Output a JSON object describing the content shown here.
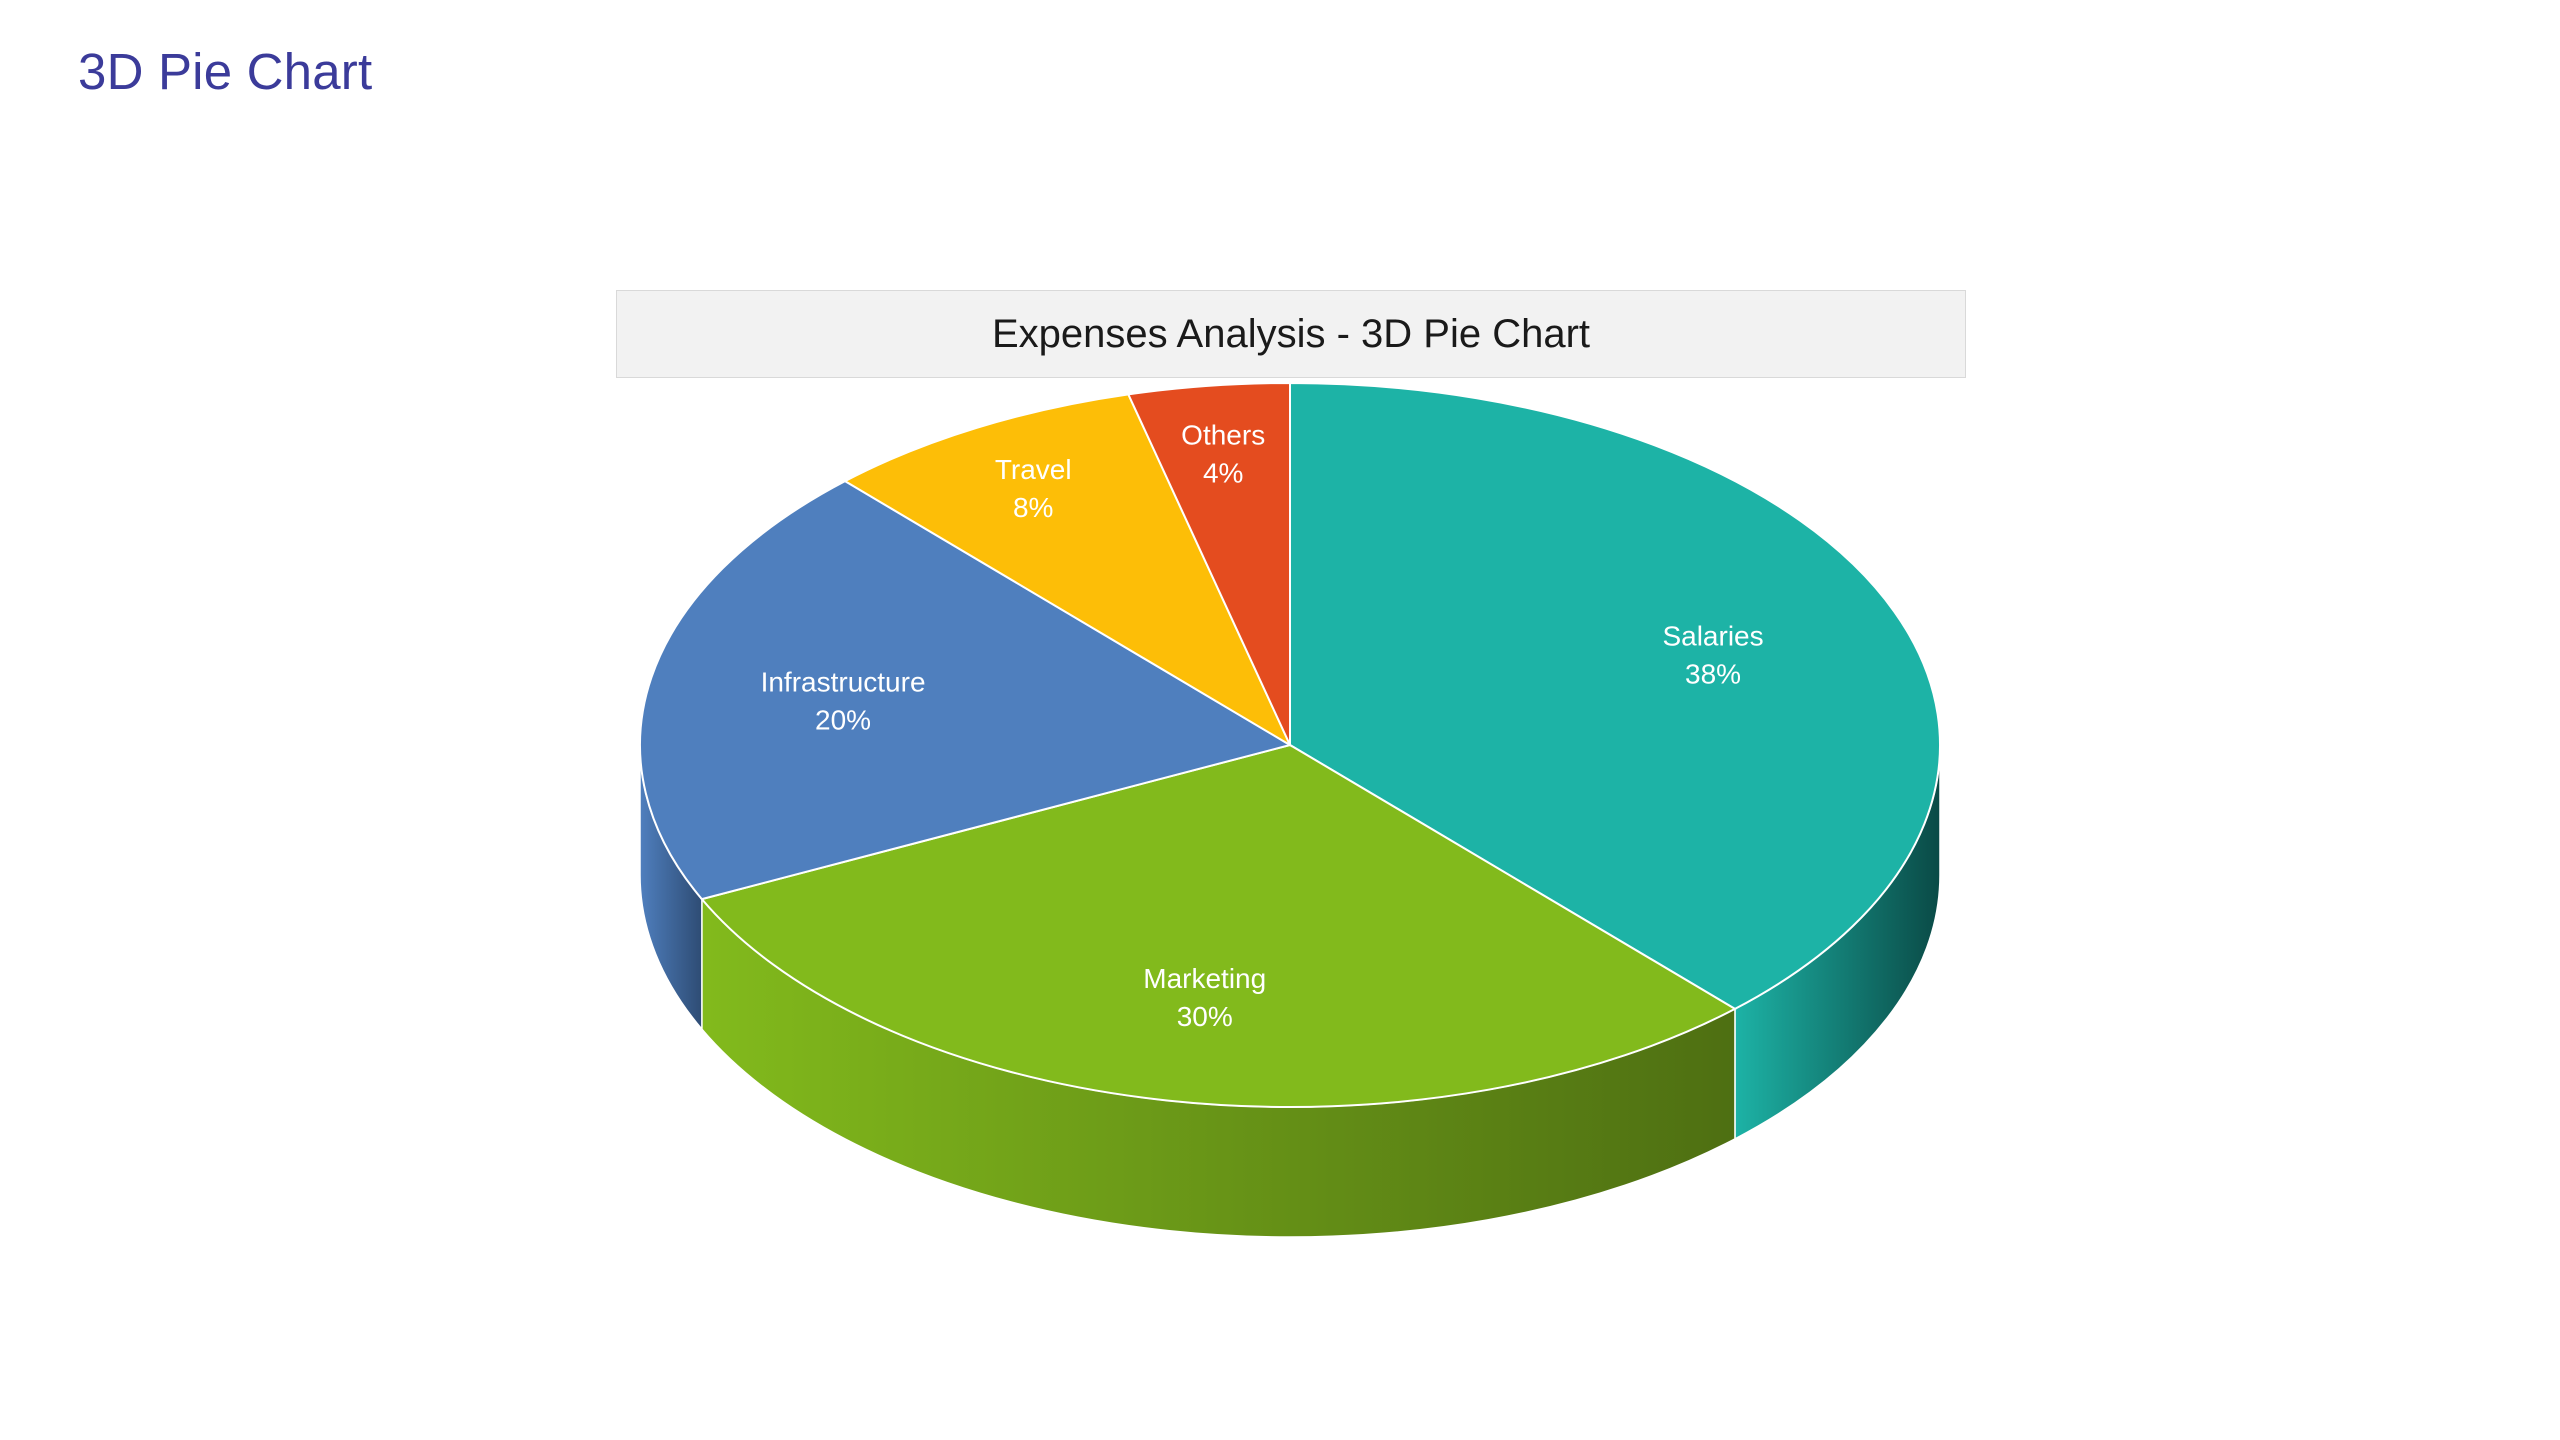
{
  "page": {
    "title": "3D Pie Chart"
  },
  "chart_data": {
    "type": "pie",
    "title": "Expenses Analysis - 3D Pie Chart",
    "style": "3d",
    "start_angle_deg": 90,
    "direction": "clockwise",
    "slices": [
      {
        "label": "Salaries",
        "value": 38,
        "value_label": "38%",
        "color": "#1db3a6",
        "side_color": "#0a4a46"
      },
      {
        "label": "Marketing",
        "value": 30,
        "value_label": "30%",
        "color": "#82ba1c",
        "side_color": "#4e6f12"
      },
      {
        "label": "Infrastructure",
        "value": 20,
        "value_label": "20%",
        "color": "#4f7fbe",
        "side_color": "#2e4c74"
      },
      {
        "label": "Travel",
        "value": 8,
        "value_label": "8%",
        "color": "#fdbe07",
        "side_color": "#9a7404"
      },
      {
        "label": "Others",
        "value": 4,
        "value_label": "4%",
        "color": "#e44c1f",
        "side_color": "#8a2e13"
      }
    ]
  }
}
